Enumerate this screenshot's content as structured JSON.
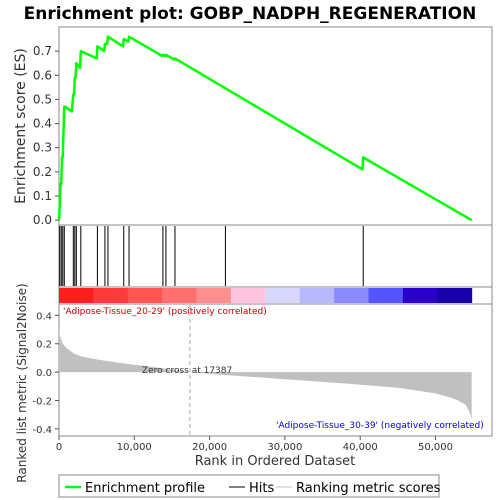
{
  "chart_data": [
    {
      "type": "line",
      "title": "Enrichment plot: GOBP_NADPH_REGENERATION",
      "ylabel": "Enrichment score (ES)",
      "xlim": [
        0,
        57500
      ],
      "ylim": [
        -0.02,
        0.8
      ],
      "yticks": [
        0.0,
        0.1,
        0.2,
        0.3,
        0.4,
        0.5,
        0.6,
        0.7
      ],
      "grid": false,
      "series": [
        {
          "name": "Enrichment profile",
          "color": "#00ff00",
          "x": [
            0,
            100,
            200,
            300,
            400,
            500,
            600,
            700,
            800,
            1700,
            1900,
            2000,
            2100,
            2200,
            2300,
            2800,
            2900,
            5000,
            5100,
            6000,
            6100,
            6400,
            6500,
            8500,
            8600,
            9200,
            9300,
            13700,
            13800,
            14100,
            14200,
            15300,
            15400,
            40300,
            40400,
            54800
          ],
          "y": [
            0.0,
            0.06,
            0.15,
            0.15,
            0.26,
            0.26,
            0.37,
            0.47,
            0.47,
            0.45,
            0.52,
            0.52,
            0.59,
            0.59,
            0.65,
            0.63,
            0.7,
            0.67,
            0.72,
            0.7,
            0.73,
            0.73,
            0.76,
            0.72,
            0.75,
            0.74,
            0.76,
            0.68,
            0.685,
            0.68,
            0.685,
            0.665,
            0.67,
            0.21,
            0.26,
            0.0
          ]
        }
      ]
    },
    {
      "type": "hits",
      "x": [
        100,
        300,
        500,
        700,
        1900,
        2100,
        2300,
        2900,
        5100,
        6100,
        6500,
        8600,
        9300,
        13800,
        14200,
        15400,
        22100,
        40400
      ],
      "xlim": [
        0,
        57500
      ]
    },
    {
      "type": "heatmap",
      "colors": [
        "#ff1e1e",
        "#ff3a3a",
        "#ff5555",
        "#ff7070",
        "#ff8f8f",
        "#ffc4e0",
        "#d8d8ff",
        "#b8b8ff",
        "#8b8bff",
        "#5555ff",
        "#2a00cc",
        "#1a00aa"
      ],
      "xlim": [
        0,
        57500
      ]
    },
    {
      "type": "area",
      "ylabel": "Ranked list metric (Signal2Noise)",
      "xlabel": "Rank in Ordered Dataset",
      "xlim": [
        0,
        57500
      ],
      "ylim": [
        -0.45,
        0.48
      ],
      "xticks": [
        0,
        10000,
        20000,
        30000,
        40000,
        50000
      ],
      "xtick_labels": [
        "0",
        "10,000",
        "20,000",
        "30,000",
        "40,000",
        "50,000"
      ],
      "yticks": [
        -0.4,
        -0.2,
        0.0,
        0.2,
        0.4
      ],
      "ytick_labels": [
        "-0.4",
        "-0.2",
        "0.0",
        "0.2",
        "0.4"
      ],
      "zero_cross": 17387,
      "zero_cross_label": "Zero cross at 17387",
      "pos_label": "'Adipose-Tissue_20-29' (positively correlated)",
      "neg_label": "'Adipose-Tissue_30-39' (negatively correlated)",
      "series": [
        {
          "name": "Ranking metric scores",
          "color": "#c0c0c0",
          "x": [
            0,
            100,
            500,
            1000,
            2000,
            3000,
            5000,
            8000,
            12000,
            17387,
            22000,
            30000,
            38000,
            45000,
            50000,
            52000,
            53000,
            54000,
            54500,
            54800
          ],
          "y": [
            0.3,
            0.26,
            0.2,
            0.17,
            0.13,
            0.11,
            0.09,
            0.065,
            0.04,
            0.0,
            -0.02,
            -0.05,
            -0.08,
            -0.11,
            -0.15,
            -0.18,
            -0.2,
            -0.23,
            -0.28,
            -0.33
          ]
        }
      ]
    }
  ],
  "legend": {
    "items": [
      {
        "label": "Enrichment profile",
        "color": "#00ff00"
      },
      {
        "label": "Hits",
        "color": "#000000"
      },
      {
        "label": "Ranking metric scores",
        "color": "#c0c0c0"
      }
    ]
  }
}
